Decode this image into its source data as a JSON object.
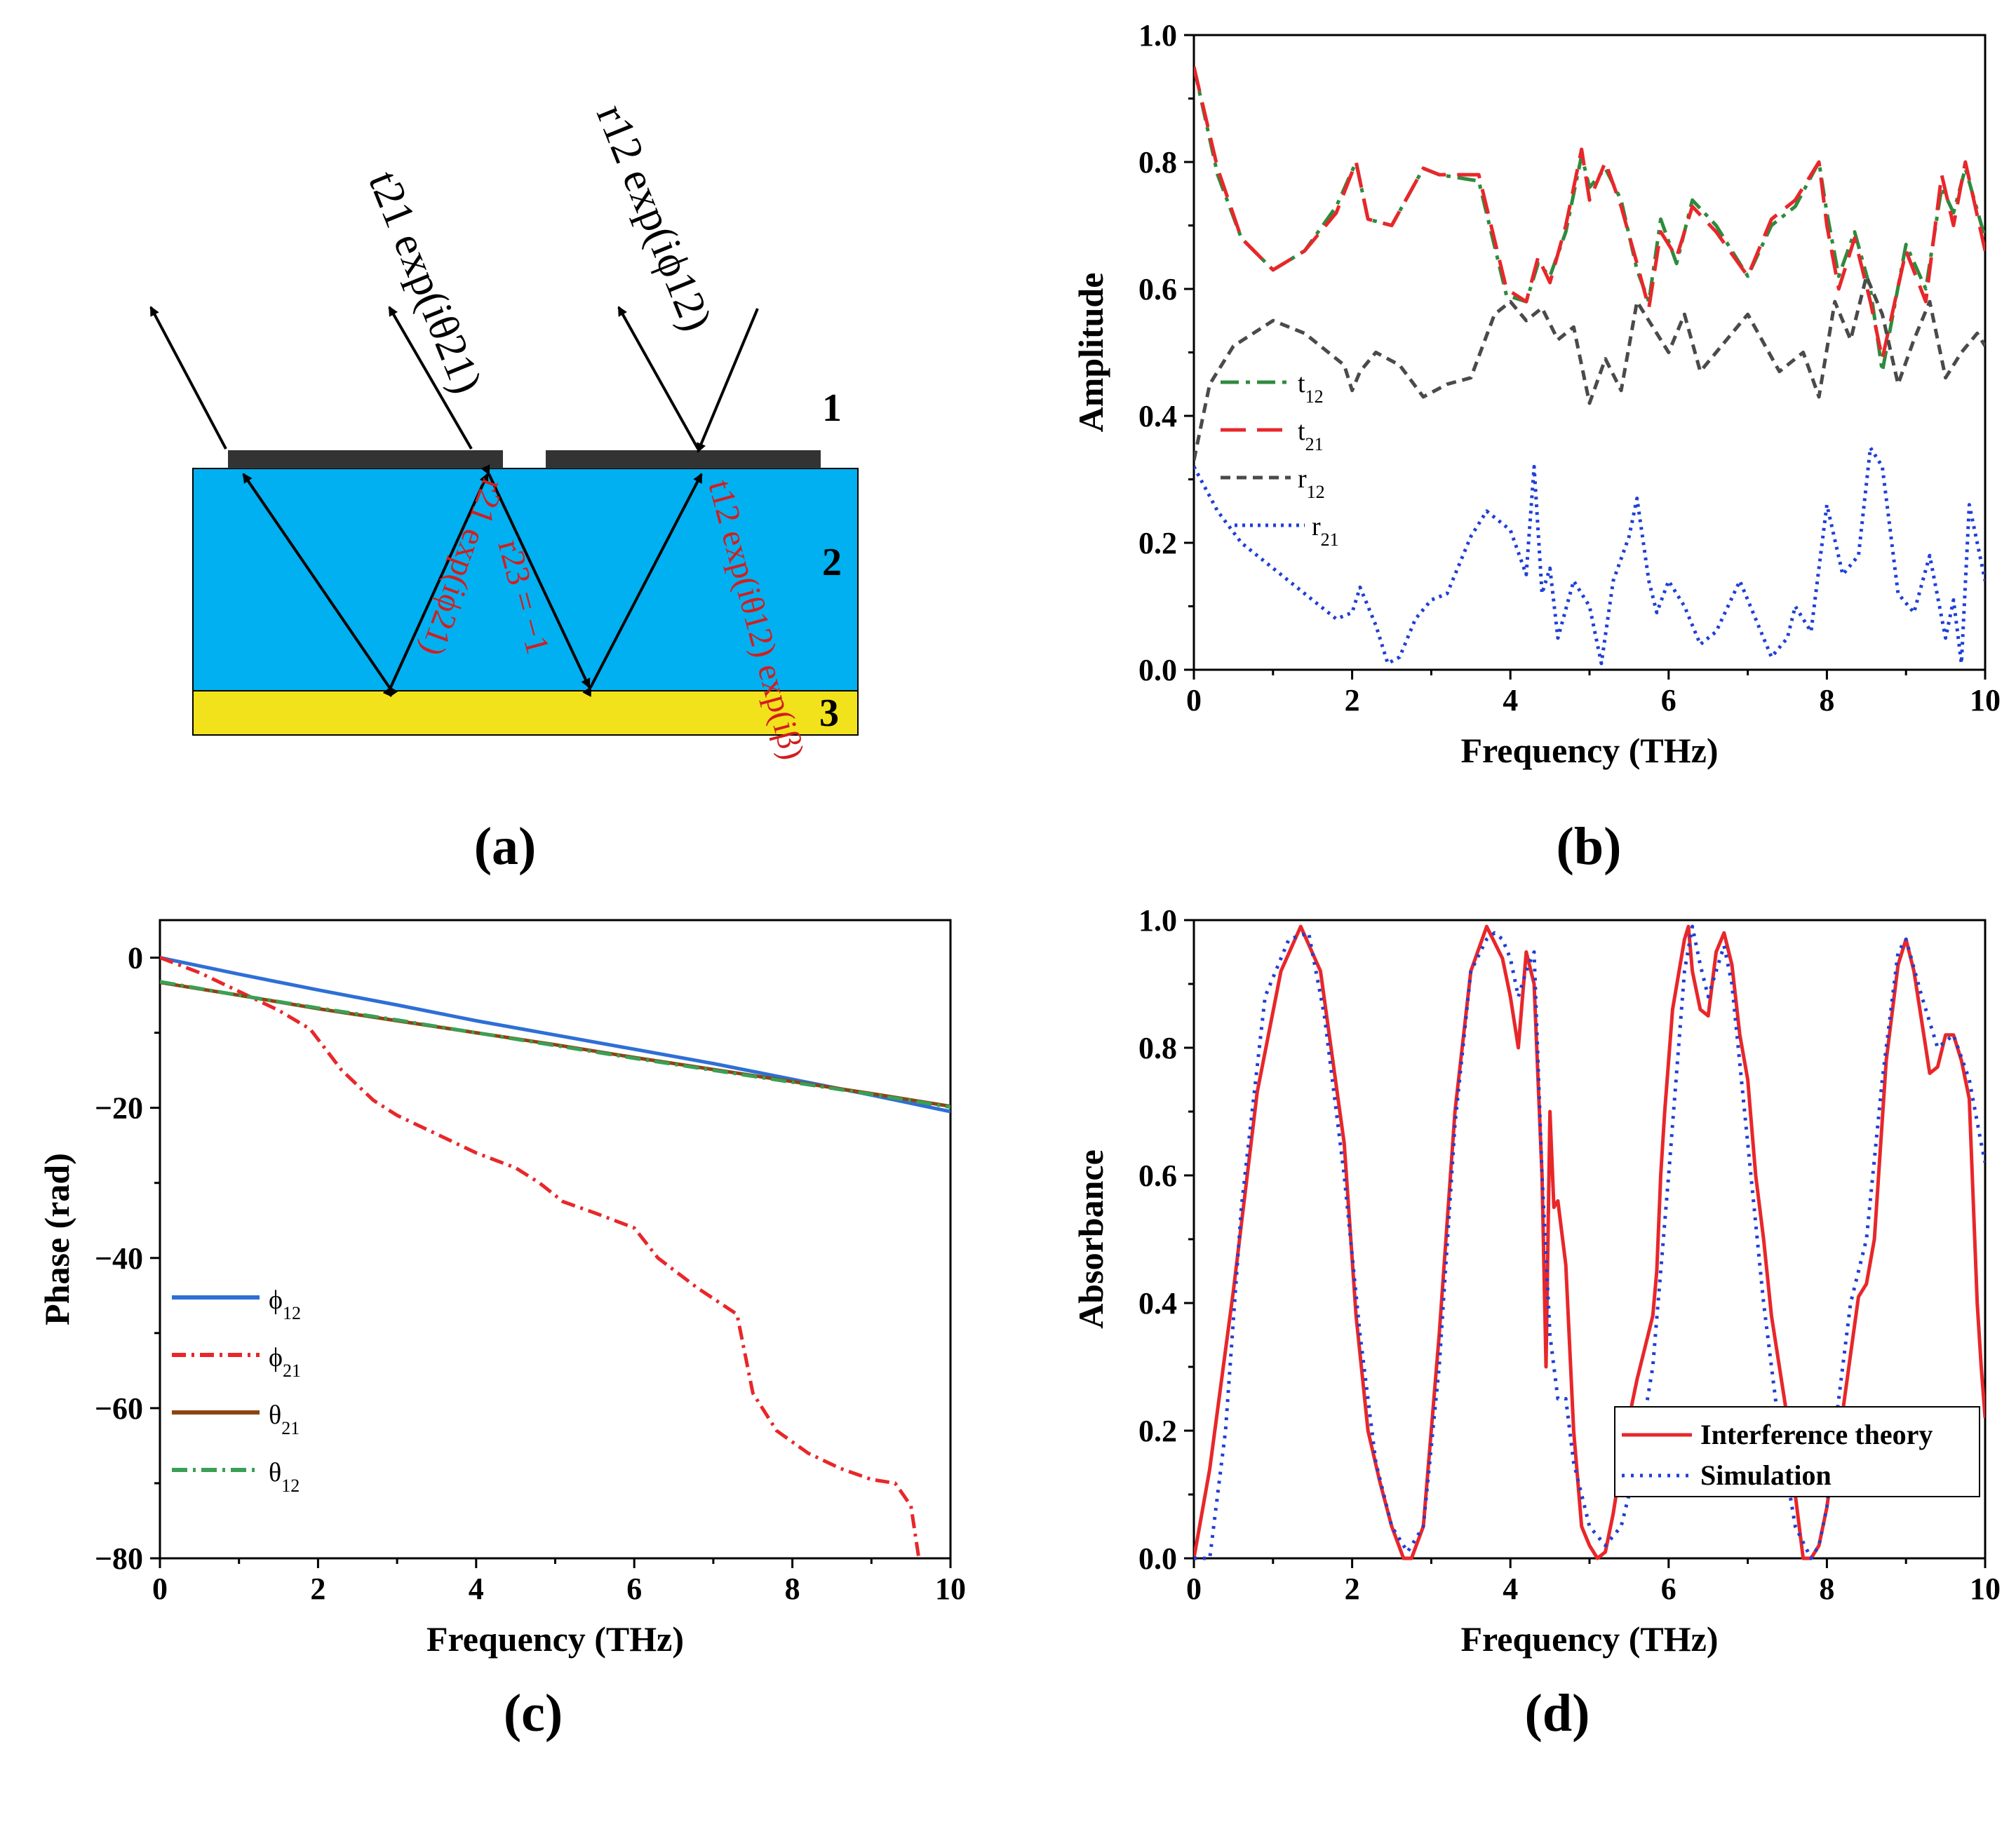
{
  "panels": {
    "a": {
      "label": "(a)"
    },
    "b": {
      "label": "(b)"
    },
    "c": {
      "label": "(c)"
    },
    "d": {
      "label": "(d)"
    }
  },
  "diagram": {
    "layers": [
      "1",
      "2",
      "3"
    ],
    "colors": {
      "dielectric": "#00b0f0",
      "substrate": "#f2e21c",
      "metal": "#333333"
    },
    "labels": {
      "t21_out": "t21 exp(iθ21)",
      "r12_out": "r12 exp(iϕ12)",
      "r21_in": "r21 exp(iϕ21)",
      "r23": "r23 = −1",
      "t12_in": "t12 exp(iθ12) exp(iβ)"
    }
  },
  "chart_data": [
    {
      "id": "b",
      "type": "line",
      "xlabel": "Frequency (THz)",
      "ylabel": "Amplitude",
      "xlim": [
        0,
        10
      ],
      "ylim": [
        0,
        1.0
      ],
      "xticks": [
        "0",
        "2",
        "4",
        "6",
        "8",
        "10"
      ],
      "yticks": [
        "0.0",
        "0.2",
        "0.4",
        "0.6",
        "0.8",
        "1.0"
      ],
      "series": [
        {
          "name": "t12",
          "sub": "12",
          "base": "t",
          "color": "#2e8b3e",
          "dash": "26 10 6 10",
          "x": [
            0,
            0.3,
            0.6,
            1.0,
            1.4,
            1.8,
            2.05,
            2.2,
            2.5,
            2.9,
            3.1,
            3.6,
            3.95,
            4.2,
            4.35,
            4.5,
            4.7,
            4.9,
            5.0,
            5.2,
            5.4,
            5.6,
            5.75,
            5.9,
            6.1,
            6.3,
            6.6,
            7.0,
            7.3,
            7.6,
            7.9,
            8.0,
            8.15,
            8.35,
            8.55,
            8.7,
            9.0,
            9.25,
            9.45,
            9.6,
            9.75,
            10.0
          ],
          "values": [
            0.95,
            0.78,
            0.68,
            0.63,
            0.66,
            0.73,
            0.8,
            0.71,
            0.7,
            0.79,
            0.78,
            0.77,
            0.59,
            0.58,
            0.64,
            0.62,
            0.69,
            0.81,
            0.76,
            0.79,
            0.74,
            0.63,
            0.58,
            0.71,
            0.64,
            0.74,
            0.7,
            0.62,
            0.7,
            0.73,
            0.8,
            0.72,
            0.62,
            0.69,
            0.6,
            0.47,
            0.67,
            0.6,
            0.76,
            0.72,
            0.79,
            0.68
          ]
        },
        {
          "name": "t21",
          "sub": "21",
          "base": "t",
          "color": "#e8272a",
          "dash": "36 16",
          "x": [
            0,
            0.3,
            0.6,
            1.0,
            1.4,
            1.8,
            2.05,
            2.2,
            2.5,
            2.9,
            3.1,
            3.6,
            3.95,
            4.2,
            4.35,
            4.5,
            4.7,
            4.9,
            5.0,
            5.2,
            5.4,
            5.6,
            5.75,
            5.9,
            6.1,
            6.3,
            6.6,
            7.0,
            7.3,
            7.6,
            7.9,
            8.0,
            8.15,
            8.35,
            8.55,
            8.7,
            9.0,
            9.25,
            9.45,
            9.6,
            9.75,
            10.0
          ],
          "values": [
            0.95,
            0.79,
            0.68,
            0.63,
            0.66,
            0.72,
            0.8,
            0.71,
            0.7,
            0.79,
            0.78,
            0.78,
            0.6,
            0.58,
            0.65,
            0.61,
            0.7,
            0.82,
            0.74,
            0.8,
            0.73,
            0.64,
            0.57,
            0.69,
            0.65,
            0.73,
            0.69,
            0.62,
            0.71,
            0.74,
            0.8,
            0.7,
            0.6,
            0.68,
            0.58,
            0.49,
            0.66,
            0.58,
            0.78,
            0.7,
            0.8,
            0.66
          ]
        },
        {
          "name": "r12",
          "sub": "12",
          "base": "r",
          "color": "#4a4a4a",
          "dash": "14 9",
          "x": [
            0,
            0.2,
            0.5,
            1.0,
            1.4,
            1.9,
            2.0,
            2.1,
            2.3,
            2.6,
            2.9,
            3.2,
            3.5,
            3.8,
            4.0,
            4.2,
            4.4,
            4.6,
            4.8,
            5.0,
            5.2,
            5.4,
            5.6,
            5.8,
            6.0,
            6.2,
            6.4,
            6.6,
            7.0,
            7.4,
            7.7,
            7.9,
            8.1,
            8.3,
            8.5,
            8.7,
            8.9,
            9.1,
            9.3,
            9.5,
            9.7,
            9.9,
            10.0
          ],
          "values": [
            0.33,
            0.45,
            0.51,
            0.55,
            0.53,
            0.48,
            0.44,
            0.47,
            0.5,
            0.48,
            0.43,
            0.45,
            0.46,
            0.56,
            0.58,
            0.55,
            0.57,
            0.52,
            0.54,
            0.42,
            0.49,
            0.44,
            0.58,
            0.54,
            0.5,
            0.56,
            0.47,
            0.5,
            0.56,
            0.47,
            0.5,
            0.43,
            0.58,
            0.52,
            0.62,
            0.56,
            0.45,
            0.52,
            0.58,
            0.46,
            0.5,
            0.53,
            0.51
          ]
        },
        {
          "name": "r21",
          "sub": "21",
          "base": "r",
          "color": "#1f3fd6",
          "dash": "4 7",
          "x": [
            0,
            0.3,
            0.6,
            1.0,
            1.4,
            1.8,
            2.0,
            2.1,
            2.3,
            2.45,
            2.6,
            2.8,
            3.0,
            3.2,
            3.5,
            3.7,
            4.0,
            4.2,
            4.3,
            4.4,
            4.5,
            4.6,
            4.8,
            5.0,
            5.15,
            5.3,
            5.5,
            5.6,
            5.75,
            5.85,
            6.0,
            6.2,
            6.4,
            6.6,
            6.9,
            7.1,
            7.3,
            7.5,
            7.6,
            7.8,
            8.0,
            8.2,
            8.4,
            8.55,
            8.7,
            8.9,
            9.1,
            9.3,
            9.5,
            9.6,
            9.7,
            9.8,
            10.0
          ],
          "values": [
            0.32,
            0.25,
            0.2,
            0.16,
            0.12,
            0.08,
            0.09,
            0.13,
            0.07,
            0.01,
            0.02,
            0.08,
            0.11,
            0.12,
            0.21,
            0.25,
            0.22,
            0.15,
            0.32,
            0.12,
            0.16,
            0.05,
            0.14,
            0.1,
            0.01,
            0.14,
            0.21,
            0.27,
            0.14,
            0.09,
            0.14,
            0.1,
            0.04,
            0.06,
            0.14,
            0.08,
            0.02,
            0.05,
            0.1,
            0.06,
            0.26,
            0.15,
            0.18,
            0.35,
            0.32,
            0.12,
            0.09,
            0.18,
            0.05,
            0.11,
            0.01,
            0.26,
            0.14
          ]
        }
      ]
    },
    {
      "id": "c",
      "type": "line",
      "xlabel": "Frequency (THz)",
      "ylabel": "Phase (rad)",
      "xlim": [
        0,
        10
      ],
      "ylim": [
        -80,
        5
      ],
      "xticks": [
        "0",
        "2",
        "4",
        "6",
        "8",
        "10"
      ],
      "yticks": [
        "0",
        "−20",
        "−40",
        "−60",
        "−80"
      ],
      "series": [
        {
          "name": "ϕ12",
          "sub": "12",
          "base": "ϕ",
          "color": "#2e6fd6",
          "dash": "",
          "x": [
            0,
            1,
            2,
            3,
            4,
            5,
            6,
            7,
            8,
            9,
            10
          ],
          "values": [
            0,
            -2.2,
            -4.3,
            -6.3,
            -8.4,
            -10.3,
            -12.2,
            -14.1,
            -16.2,
            -18.3,
            -20.5
          ]
        },
        {
          "name": "ϕ21",
          "sub": "21",
          "base": "ϕ",
          "color": "#e8272a",
          "dash": "20 8 4 8",
          "x": [
            0,
            0.5,
            1.0,
            1.5,
            1.9,
            2.3,
            2.7,
            3.0,
            3.5,
            4.0,
            4.5,
            4.8,
            5.1,
            5.5,
            6.0,
            6.3,
            6.8,
            7.3,
            7.5,
            7.8,
            8.2,
            8.6,
            9.0,
            9.3,
            9.5,
            9.6
          ],
          "values": [
            0,
            -2.0,
            -4.5,
            -7.0,
            -9.5,
            -15,
            -19,
            -21,
            -23.5,
            -26,
            -28,
            -30,
            -32.5,
            -34,
            -36,
            -40,
            -44,
            -47.5,
            -58,
            -63,
            -66,
            -68,
            -69.5,
            -70,
            -73,
            -80
          ]
        },
        {
          "name": "θ21",
          "sub": "21",
          "base": "θ",
          "color": "#8b4513",
          "dash": "",
          "x": [
            0,
            1,
            2,
            3,
            4,
            5,
            6,
            7,
            8,
            9,
            10
          ],
          "values": [
            -3.3,
            -5.0,
            -6.8,
            -8.4,
            -10.0,
            -11.6,
            -13.3,
            -14.9,
            -16.5,
            -18.1,
            -19.8
          ]
        },
        {
          "name": "θ12",
          "sub": "12",
          "base": "θ",
          "color": "#3aa055",
          "dash": "22 8 4 8",
          "x": [
            0,
            1,
            2,
            3,
            4,
            5,
            6,
            7,
            8,
            9,
            10
          ],
          "values": [
            -3.2,
            -5.0,
            -6.7,
            -8.3,
            -10.0,
            -11.7,
            -13.4,
            -15.0,
            -16.6,
            -18.2,
            -19.9
          ]
        }
      ]
    },
    {
      "id": "d",
      "type": "line",
      "xlabel": "Frequency (THz)",
      "ylabel": "Absorbance",
      "xlim": [
        0,
        10
      ],
      "ylim": [
        0,
        1.0
      ],
      "xticks": [
        "0",
        "2",
        "4",
        "6",
        "8",
        "10"
      ],
      "yticks": [
        "0.0",
        "0.2",
        "0.4",
        "0.6",
        "0.8",
        "1.0"
      ],
      "series": [
        {
          "name": "Interference theory",
          "color": "#e8272a",
          "dash": "",
          "x": [
            0,
            0.2,
            0.5,
            0.8,
            1.1,
            1.35,
            1.6,
            1.9,
            2.05,
            2.2,
            2.35,
            2.5,
            2.65,
            2.75,
            2.9,
            3.1,
            3.3,
            3.5,
            3.7,
            3.9,
            4.0,
            4.1,
            4.2,
            4.3,
            4.4,
            4.45,
            4.5,
            4.55,
            4.6,
            4.7,
            4.8,
            4.9,
            5.0,
            5.1,
            5.2,
            5.3,
            5.4,
            5.5,
            5.6,
            5.7,
            5.8,
            5.85,
            5.9,
            5.95,
            6.05,
            6.2,
            6.25,
            6.3,
            6.4,
            6.5,
            6.6,
            6.7,
            6.8,
            6.9,
            7.0,
            7.1,
            7.2,
            7.3,
            7.4,
            7.5,
            7.6,
            7.7,
            7.8,
            7.9,
            8.0,
            8.1,
            8.2,
            8.3,
            8.4,
            8.5,
            8.6,
            8.75,
            8.9,
            9.0,
            9.1,
            9.2,
            9.3,
            9.4,
            9.5,
            9.6,
            9.7,
            9.8,
            9.9,
            9.95,
            10.0
          ],
          "values": [
            0,
            0.14,
            0.42,
            0.73,
            0.92,
            0.99,
            0.92,
            0.65,
            0.38,
            0.2,
            0.12,
            0.05,
            0.0,
            0.0,
            0.05,
            0.35,
            0.7,
            0.92,
            0.99,
            0.94,
            0.88,
            0.8,
            0.95,
            0.9,
            0.6,
            0.3,
            0.7,
            0.55,
            0.56,
            0.46,
            0.2,
            0.05,
            0.02,
            0.0,
            0.01,
            0.07,
            0.15,
            0.22,
            0.28,
            0.33,
            0.38,
            0.45,
            0.6,
            0.7,
            0.86,
            0.97,
            0.99,
            0.92,
            0.86,
            0.85,
            0.95,
            0.98,
            0.93,
            0.82,
            0.75,
            0.6,
            0.5,
            0.38,
            0.3,
            0.22,
            0.1,
            0.0,
            0.0,
            0.02,
            0.08,
            0.17,
            0.23,
            0.32,
            0.41,
            0.43,
            0.5,
            0.78,
            0.93,
            0.97,
            0.92,
            0.84,
            0.76,
            0.77,
            0.82,
            0.82,
            0.78,
            0.72,
            0.4,
            0.3,
            0.22
          ]
        },
        {
          "name": "Simulation",
          "color": "#1f3fd6",
          "dash": "4 9",
          "x": [
            0,
            0.2,
            0.4,
            0.6,
            0.9,
            1.2,
            1.45,
            1.65,
            1.9,
            2.1,
            2.3,
            2.5,
            2.7,
            2.9,
            3.1,
            3.3,
            3.5,
            3.7,
            3.8,
            3.9,
            4.0,
            4.1,
            4.2,
            4.3,
            4.4,
            4.5,
            4.6,
            4.7,
            4.8,
            5.0,
            5.2,
            5.4,
            5.6,
            5.8,
            6.0,
            6.2,
            6.3,
            6.4,
            6.5,
            6.6,
            6.7,
            6.8,
            7.0,
            7.2,
            7.4,
            7.6,
            7.8,
            7.9,
            8.0,
            8.1,
            8.3,
            8.5,
            8.7,
            8.9,
            9.0,
            9.2,
            9.4,
            9.6,
            9.8,
            9.95,
            10.0
          ],
          "values": [
            0,
            0.0,
            0.2,
            0.55,
            0.88,
            0.97,
            0.98,
            0.85,
            0.6,
            0.35,
            0.15,
            0.05,
            0.01,
            0.05,
            0.3,
            0.68,
            0.92,
            0.97,
            0.98,
            0.97,
            0.94,
            0.88,
            0.92,
            0.95,
            0.6,
            0.35,
            0.25,
            0.25,
            0.15,
            0.05,
            0.02,
            0.05,
            0.15,
            0.3,
            0.6,
            0.92,
            0.99,
            0.93,
            0.88,
            0.92,
            0.96,
            0.9,
            0.65,
            0.4,
            0.2,
            0.05,
            0.0,
            0.02,
            0.08,
            0.2,
            0.4,
            0.5,
            0.75,
            0.95,
            0.97,
            0.88,
            0.8,
            0.82,
            0.75,
            0.65,
            0.62
          ]
        }
      ]
    }
  ]
}
